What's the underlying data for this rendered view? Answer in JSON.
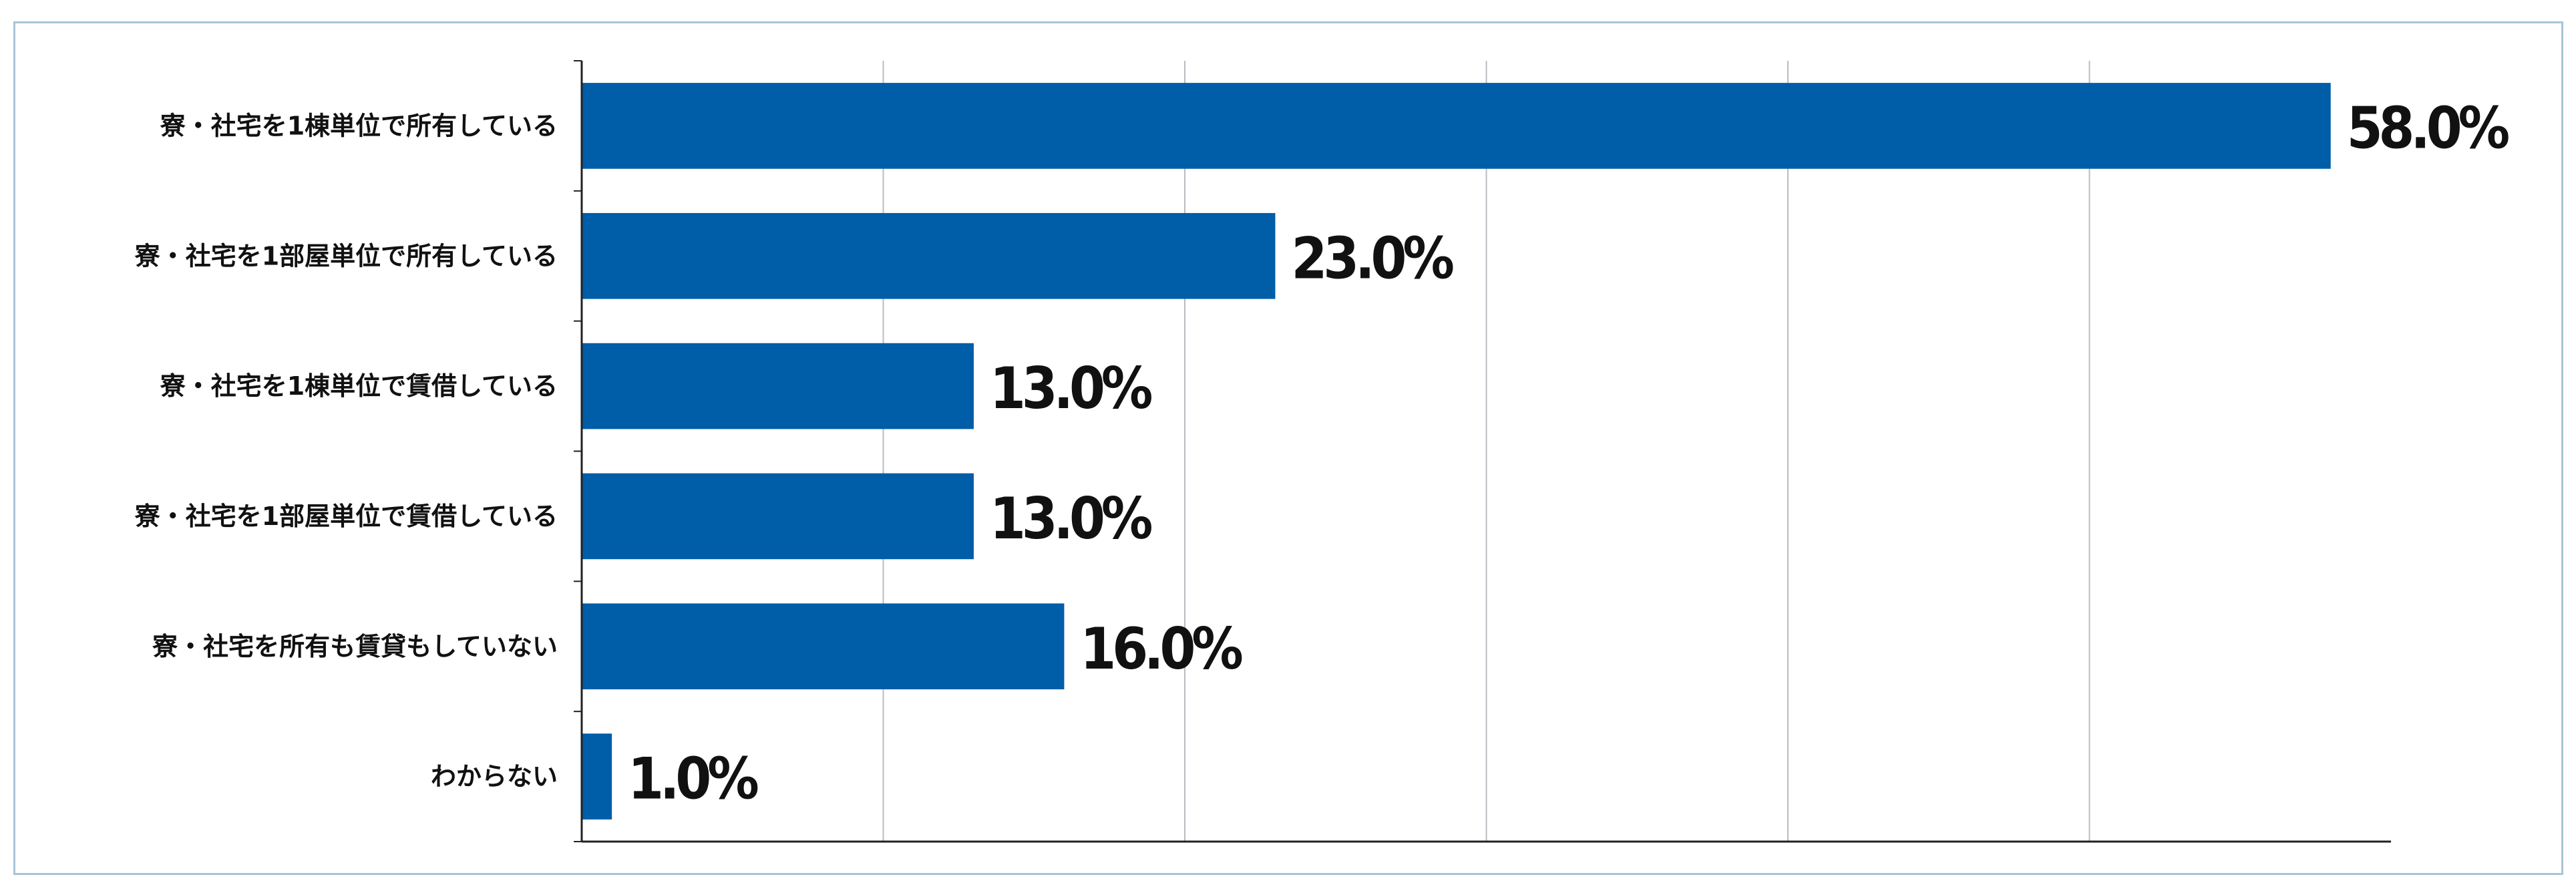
{
  "chart_data": {
    "type": "bar",
    "orientation": "horizontal",
    "categories": [
      "寮・社宅を1棟単位で所有している",
      "寮・社宅を1部屋単位で所有している",
      "寮・社宅を1棟単位で賃借している",
      "寮・社宅を1部屋単位で賃借している",
      "寮・社宅を所有も賃貸もしていない",
      "わからない"
    ],
    "values": [
      58.0,
      23.0,
      13.0,
      13.0,
      16.0,
      1.0
    ],
    "value_labels": [
      "58.0%",
      "23.0%",
      "13.0%",
      "13.0%",
      "16.0%",
      "1.0%"
    ],
    "title": "",
    "xlabel": "",
    "ylabel": "",
    "xlim": [
      0,
      60
    ],
    "grid": "vertical",
    "gridlines": [
      10,
      20,
      30,
      40,
      50
    ],
    "legend": "none",
    "colors": {
      "bar": "#005da8",
      "grid": "#b8bcc2",
      "axis": "#222222",
      "frame": "#a9c4d6",
      "text": "#111111"
    }
  }
}
